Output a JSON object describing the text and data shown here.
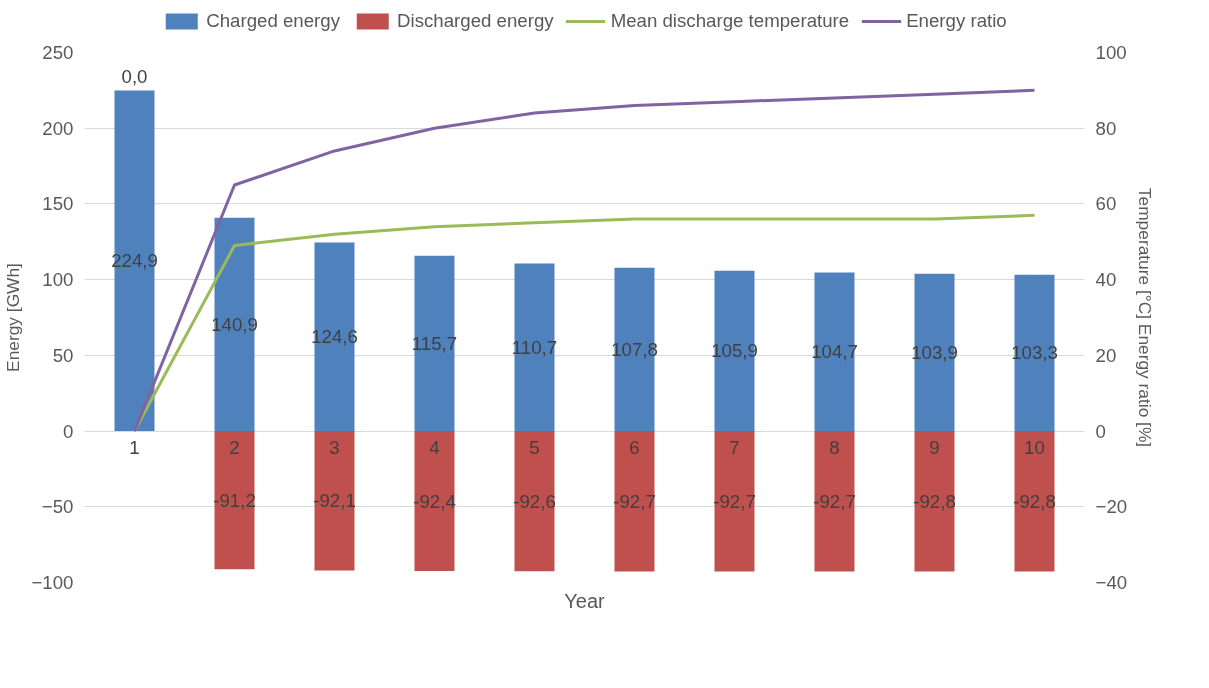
{
  "chart_data": {
    "type": "bar",
    "stacked": true,
    "xlabel": "Year",
    "ylabel": "Energy [GWh]",
    "y2label": "Temperature [°C] Energy ratio [%]",
    "categories": [
      "1",
      "2",
      "3",
      "4",
      "5",
      "6",
      "7",
      "8",
      "9",
      "10"
    ],
    "series": [
      {
        "name": "Charged energy",
        "color": "#4f81bd",
        "values": [
          224.9,
          140.9,
          124.6,
          115.7,
          110.7,
          107.8,
          105.9,
          104.7,
          103.9,
          103.3
        ],
        "value_labels": [
          "224,9",
          "140,9",
          "124,6",
          "115,7",
          "110,7",
          "107,8",
          "105,9",
          "104,7",
          "103,9",
          "103,3"
        ]
      },
      {
        "name": "Discharged energy",
        "color": "#c0504d",
        "values": [
          0,
          -91.2,
          -92.1,
          -92.4,
          -92.6,
          -92.7,
          -92.7,
          -92.7,
          -92.8,
          -92.8
        ],
        "value_labels": [
          "0,0",
          "-91,2",
          "-92,1",
          "-92,4",
          "-92,6",
          "-92,7",
          "-92,7",
          "-92,7",
          "-92,8",
          "-92,8"
        ]
      },
      {
        "name": "Mean discharge temperature",
        "type": "line",
        "axis": "y2",
        "color": "#9bbb59",
        "values": [
          0,
          49,
          52,
          54,
          55,
          56,
          56,
          56,
          56,
          57
        ]
      },
      {
        "name": "Energy ratio",
        "type": "line",
        "axis": "y2",
        "color": "#8064a2",
        "values": [
          0,
          65,
          74,
          80,
          84,
          86,
          87,
          88,
          89,
          90
        ]
      }
    ],
    "ylim": [
      -100,
      250
    ],
    "yticks": [
      -100,
      -50,
      0,
      50,
      100,
      150,
      200,
      250
    ],
    "y2lim": [
      -40,
      100
    ],
    "y2ticks": [
      -40,
      -20,
      0,
      20,
      40,
      60,
      80,
      100
    ],
    "grid": "y",
    "legend": "top",
    "line_style": "solid",
    "marker": "none"
  }
}
